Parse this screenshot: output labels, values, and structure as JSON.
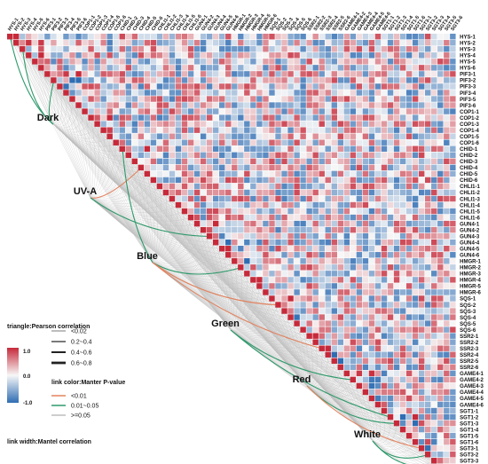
{
  "chart_data": {
    "type": "heatmap",
    "variables": [
      "HYS-1",
      "HYS-2",
      "HYS-3",
      "HYS-4",
      "HYS-5",
      "HYS-6",
      "PIF3-1",
      "PIF3-2",
      "PIF3-3",
      "PIF3-4",
      "PIF3-5",
      "PIF3-6",
      "COP1-1",
      "COP1-2",
      "COP1-3",
      "COP1-4",
      "COP1-5",
      "COP1-6",
      "CHID-1",
      "CHID-2",
      "CHID-3",
      "CHID-4",
      "CHID-5",
      "CHID-6",
      "CHLI1-1",
      "CHLI1-2",
      "CHLI1-3",
      "CHLI1-4",
      "CHLI1-5",
      "CHLI1-6",
      "GUN4-1",
      "GUN4-2",
      "GUN4-3",
      "GUN4-4",
      "GUN4-5",
      "GUN4-6",
      "HMGR-1",
      "HMGR-2",
      "HMGR-3",
      "HMGR-4",
      "HMGR-5",
      "HMGR-6",
      "SQS-1",
      "SQS-2",
      "SQS-3",
      "SQS-4",
      "SQS-5",
      "SQS-6",
      "SSR2-1",
      "SSR2-2",
      "SSR2-3",
      "SSR2-4",
      "SSR2-5",
      "SSR2-6",
      "GAME4-1",
      "GAME4-2",
      "GAME4-3",
      "GAME4-4",
      "GAME4-5",
      "GAME4-6",
      "SGT1-1",
      "SGT1-2",
      "SGT1-3",
      "SGT1-4",
      "SGT1-5",
      "SGT1-6",
      "SGT3-1",
      "SGT3-2",
      "SGT3-3",
      "SGT3-4",
      "SGT3-5",
      "SGT3-6"
    ],
    "light_conditions": [
      "Dark",
      "UV-A",
      "Blue",
      "Green",
      "Red",
      "White"
    ],
    "color_scale": {
      "title": "triangle:Pearson correlation",
      "ticks": [
        "1.0",
        "0.0",
        "-1.0"
      ],
      "range": [
        -1.0,
        1.0
      ],
      "colors": {
        "positive": "#c62a3a",
        "neutral": "#f7f7f7",
        "negative": "#2f6db3"
      }
    },
    "link_width_legend": {
      "title": "link width:Mantel correlation",
      "entries": [
        "<0.02",
        "0.2~0.4",
        "0.4~0.6",
        "0.6~0.8"
      ]
    },
    "link_color_legend": {
      "title": "link color:Manter P-value",
      "entries": [
        {
          "label": "<0.01",
          "color": "#e2825e"
        },
        {
          "label": "0.01~0.05",
          "color": "#2e9a6b"
        },
        {
          "label": ">=0.05",
          "color": "#bdbdbd"
        }
      ]
    },
    "highlighted_links": [
      {
        "from": "Dark",
        "to": "HYS-1",
        "p": "0.01~0.05"
      },
      {
        "from": "Dark",
        "to": "HYS-3",
        "p": "0.01~0.05"
      },
      {
        "from": "Dark",
        "to": "PIF3-2",
        "p": "0.01~0.05"
      },
      {
        "from": "UV-A",
        "to": "CHID-4",
        "p": "<0.01"
      },
      {
        "from": "UV-A",
        "to": "GUN4-3",
        "p": "0.01~0.05"
      },
      {
        "from": "Blue",
        "to": "CHID-1",
        "p": "0.01~0.05"
      },
      {
        "from": "Blue",
        "to": "HMGR-2",
        "p": "0.01~0.05"
      },
      {
        "from": "Blue",
        "to": "SQS-2",
        "p": "<0.01"
      },
      {
        "from": "Blue",
        "to": "SSR2-3",
        "p": "<0.01"
      },
      {
        "from": "Green",
        "to": "GAME4-2",
        "p": "0.01~0.05"
      },
      {
        "from": "Green",
        "to": "SGT1-2",
        "p": "0.01~0.05"
      },
      {
        "from": "Red",
        "to": "SGT1-3",
        "p": "0.01~0.05"
      },
      {
        "from": "Red",
        "to": "SGT3-1",
        "p": "<0.01"
      },
      {
        "from": "White",
        "to": "SGT3-2",
        "p": "0.01~0.05"
      },
      {
        "from": "White",
        "to": "SGT3-4",
        "p": "0.01~0.05"
      }
    ]
  }
}
